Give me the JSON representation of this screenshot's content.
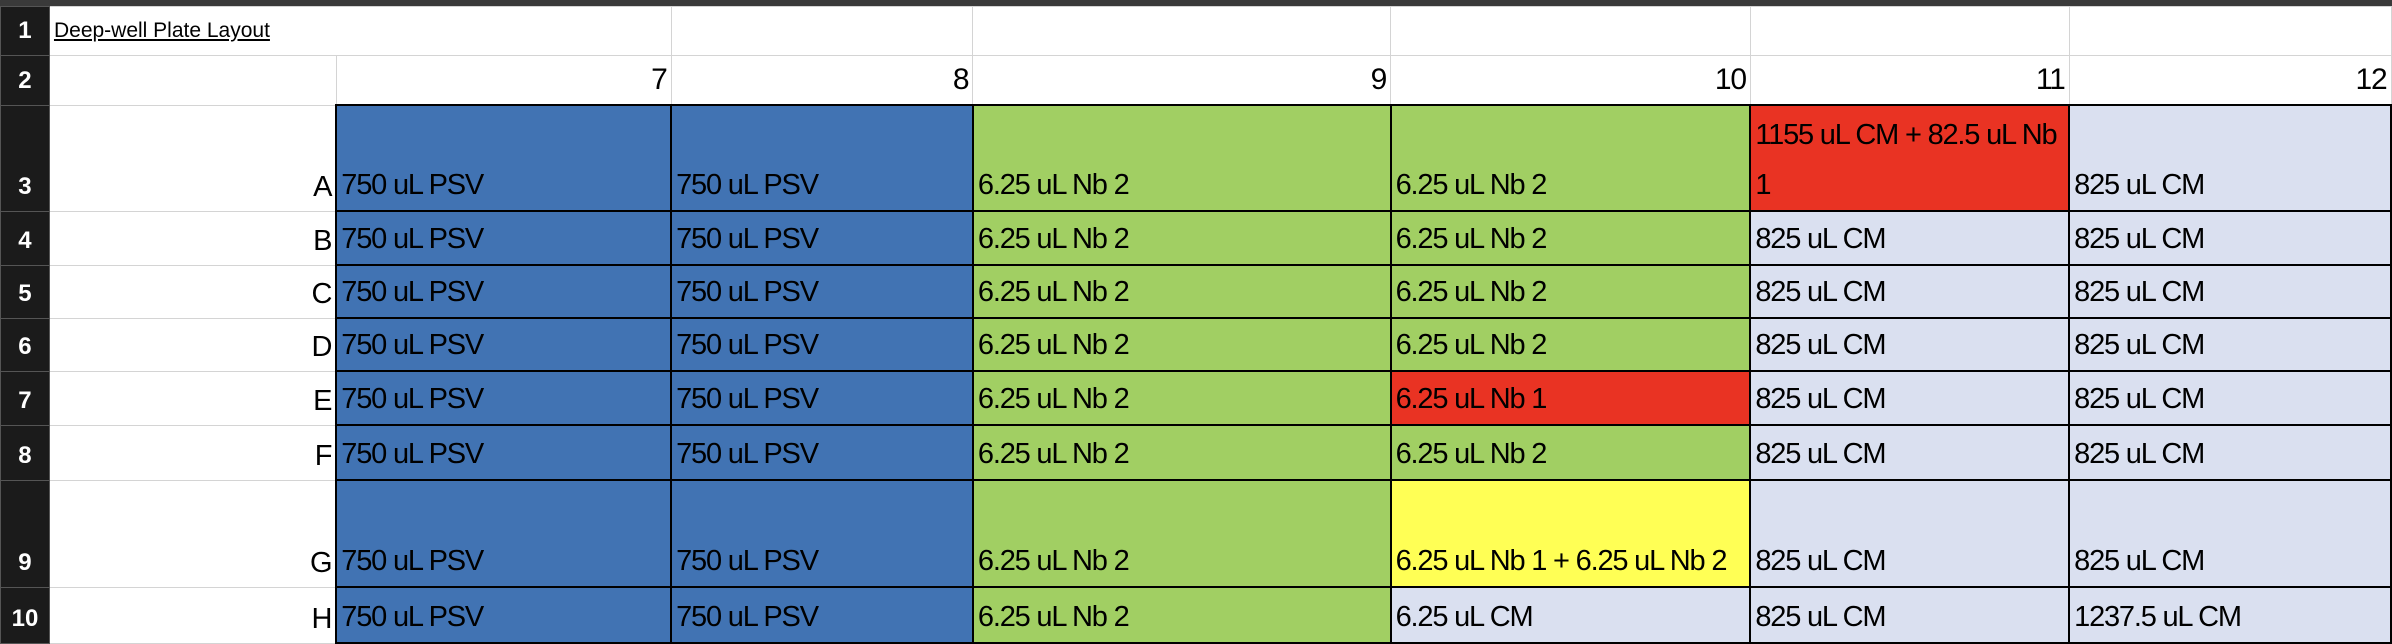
{
  "title": "Deep-well Plate Layout",
  "column_headers": [
    "7",
    "8",
    "9",
    "10",
    "11",
    "12"
  ],
  "row_numbers": [
    "1",
    "2",
    "3",
    "4",
    "5",
    "6",
    "7",
    "8",
    "9",
    "10"
  ],
  "colors": {
    "PSV": "#4173b3",
    "Nb2": "#a1cf63",
    "Nb1": "#e93323",
    "CM": "#dae0f0",
    "mix": "#ffff55"
  },
  "rows": [
    {
      "label": "A",
      "cells": [
        {
          "text": "750 uL PSV",
          "color": "PSV"
        },
        {
          "text": "750 uL PSV",
          "color": "PSV"
        },
        {
          "text": "6.25 uL Nb 2",
          "color": "Nb2"
        },
        {
          "text": "6.25 uL Nb 2",
          "color": "Nb2"
        },
        {
          "text": "1155 uL CM + 82.5 uL Nb 1",
          "color": "Nb1"
        },
        {
          "text": "825 uL CM",
          "color": "CM"
        }
      ]
    },
    {
      "label": "B",
      "cells": [
        {
          "text": "750 uL PSV",
          "color": "PSV"
        },
        {
          "text": "750 uL PSV",
          "color": "PSV"
        },
        {
          "text": "6.25 uL Nb 2",
          "color": "Nb2"
        },
        {
          "text": "6.25 uL Nb 2",
          "color": "Nb2"
        },
        {
          "text": "825 uL CM",
          "color": "CM"
        },
        {
          "text": "825 uL CM",
          "color": "CM"
        }
      ]
    },
    {
      "label": "C",
      "cells": [
        {
          "text": "750 uL PSV",
          "color": "PSV"
        },
        {
          "text": "750 uL PSV",
          "color": "PSV"
        },
        {
          "text": "6.25 uL Nb 2",
          "color": "Nb2"
        },
        {
          "text": "6.25 uL Nb 2",
          "color": "Nb2"
        },
        {
          "text": "825 uL CM",
          "color": "CM"
        },
        {
          "text": "825 uL CM",
          "color": "CM"
        }
      ]
    },
    {
      "label": "D",
      "cells": [
        {
          "text": "750 uL PSV",
          "color": "PSV"
        },
        {
          "text": "750 uL PSV",
          "color": "PSV"
        },
        {
          "text": "6.25 uL Nb 2",
          "color": "Nb2"
        },
        {
          "text": "6.25 uL Nb 2",
          "color": "Nb2"
        },
        {
          "text": "825 uL CM",
          "color": "CM"
        },
        {
          "text": "825 uL CM",
          "color": "CM"
        }
      ]
    },
    {
      "label": "E",
      "cells": [
        {
          "text": "750 uL PSV",
          "color": "PSV"
        },
        {
          "text": "750 uL PSV",
          "color": "PSV"
        },
        {
          "text": "6.25 uL Nb 2",
          "color": "Nb2"
        },
        {
          "text": "6.25 uL Nb 1",
          "color": "Nb1"
        },
        {
          "text": "825 uL CM",
          "color": "CM"
        },
        {
          "text": "825 uL CM",
          "color": "CM"
        }
      ]
    },
    {
      "label": "F",
      "cells": [
        {
          "text": "750 uL PSV",
          "color": "PSV"
        },
        {
          "text": "750 uL PSV",
          "color": "PSV"
        },
        {
          "text": "6.25 uL Nb 2",
          "color": "Nb2"
        },
        {
          "text": "6.25 uL Nb 2",
          "color": "Nb2"
        },
        {
          "text": "825 uL CM",
          "color": "CM"
        },
        {
          "text": "825 uL CM",
          "color": "CM"
        }
      ]
    },
    {
      "label": "G",
      "cells": [
        {
          "text": "750 uL PSV",
          "color": "PSV"
        },
        {
          "text": "750 uL PSV",
          "color": "PSV"
        },
        {
          "text": "6.25 uL Nb 2",
          "color": "Nb2"
        },
        {
          "text": "6.25 uL Nb 1 + 6.25 uL Nb 2",
          "color": "mix"
        },
        {
          "text": "825 uL CM",
          "color": "CM"
        },
        {
          "text": "825 uL CM",
          "color": "CM"
        }
      ]
    },
    {
      "label": "H",
      "cells": [
        {
          "text": "750 uL PSV",
          "color": "PSV"
        },
        {
          "text": "750 uL PSV",
          "color": "PSV"
        },
        {
          "text": "6.25 uL Nb 2",
          "color": "Nb2"
        },
        {
          "text": "6.25 uL CM",
          "color": "CM"
        },
        {
          "text": "825 uL CM",
          "color": "CM"
        },
        {
          "text": "1237.5 uL CM",
          "color": "CM"
        }
      ]
    }
  ]
}
